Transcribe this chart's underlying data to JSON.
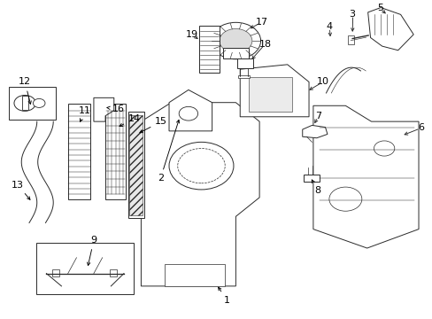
{
  "bg_color": "#ffffff",
  "line_color": "#2a2a2a",
  "label_color": "#000000",
  "label_fontsize": 8.0,
  "fig_width": 4.89,
  "fig_height": 3.6,
  "dpi": 100
}
